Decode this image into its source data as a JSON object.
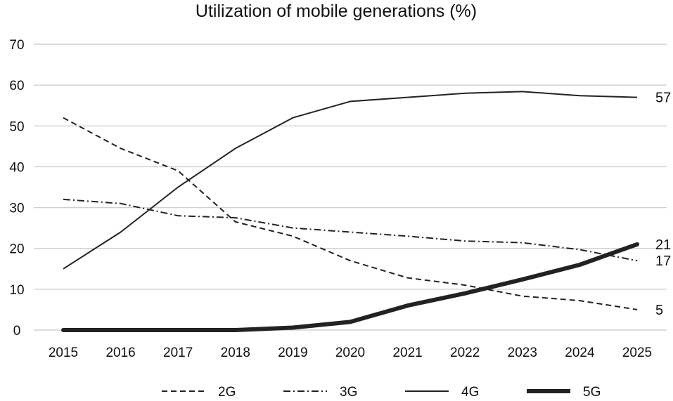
{
  "chart_data": {
    "type": "line",
    "title": "Utilization of mobile generations (%)",
    "xlabel": "",
    "ylabel": "",
    "x": [
      2015,
      2016,
      2017,
      2018,
      2019,
      2020,
      2021,
      2022,
      2023,
      2024,
      2025
    ],
    "x_tick_labels": [
      "2015",
      "2016",
      "2017",
      "2018",
      "2019",
      "2020",
      "2021",
      "2022",
      "2023",
      "2024",
      "2025"
    ],
    "ylim": [
      0,
      70
    ],
    "y_ticks": [
      0,
      10,
      20,
      30,
      40,
      50,
      60,
      70
    ],
    "y_tick_labels": [
      "0",
      "10",
      "20",
      "30",
      "40",
      "50",
      "60",
      "70"
    ],
    "grid": true,
    "legend_position": "bottom",
    "series": [
      {
        "name": "2G",
        "values": [
          52,
          44.5,
          39,
          26.5,
          23,
          17,
          12.8,
          11,
          8.3,
          7.2,
          5
        ],
        "style": "dashed",
        "color": "#222222",
        "end_label": "5"
      },
      {
        "name": "3G",
        "values": [
          32,
          31,
          28,
          27.5,
          25,
          24,
          23,
          21.8,
          21.4,
          19.7,
          17
        ],
        "style": "dash-dot",
        "color": "#222222",
        "end_label": "17"
      },
      {
        "name": "4G",
        "values": [
          15,
          24,
          35,
          44.5,
          52,
          56,
          57,
          58,
          58.4,
          57.4,
          57
        ],
        "style": "solid",
        "color": "#222222",
        "end_label": "57"
      },
      {
        "name": "5G",
        "values": [
          0,
          0,
          0,
          0,
          0.6,
          2,
          6,
          9,
          12.4,
          16,
          21
        ],
        "style": "thick",
        "color": "#222222",
        "end_label": "21"
      }
    ]
  }
}
